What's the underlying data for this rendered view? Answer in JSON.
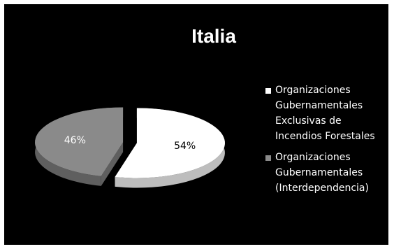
{
  "colors": {
    "background": "#000000",
    "slice_white": "#ffffff",
    "slice_white_side": "#bdbdbd",
    "slice_gray": "#8a8a8a",
    "slice_gray_side": "#5f5f5f"
  },
  "chart_data": {
    "type": "pie",
    "title": "Italia",
    "legend_position": "right",
    "slices": [
      {
        "name": "Organizaciones Gubernamentales Exclusivas de Incendios Forestales",
        "value": 54,
        "label": "54%",
        "color": "#ffffff"
      },
      {
        "name": "Organizaciones Gubernamentales (Interdependencia)",
        "value": 46,
        "label": "46%",
        "color": "#8a8a8a"
      }
    ]
  }
}
